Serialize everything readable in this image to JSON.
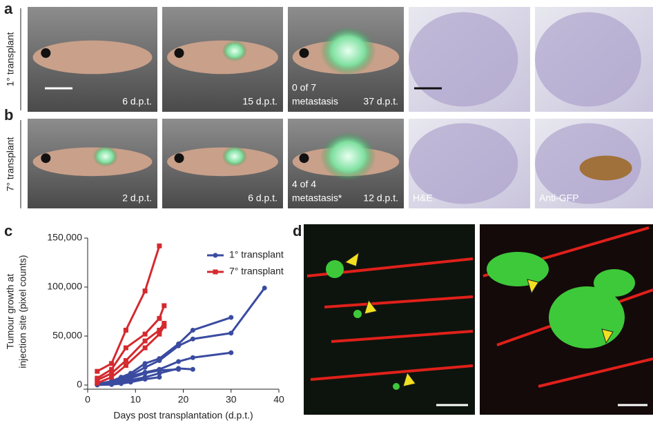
{
  "figure": {
    "panel_labels": [
      "a",
      "b",
      "c",
      "d"
    ],
    "rows": [
      {
        "label": "1° transplant",
        "captions": [
          "6 d.p.t.",
          "15 d.p.t.",
          "37 d.p.t."
        ],
        "note": [
          "0 of 7",
          "metastasis"
        ]
      },
      {
        "label": "7° transplant",
        "captions": [
          "2 d.p.t.",
          "6 d.p.t.",
          "12 d.p.t."
        ],
        "note": [
          "4 of 4",
          "metastasis*"
        ],
        "stains": [
          "H&E",
          "Anti-GFP"
        ]
      }
    ]
  },
  "chart_data": {
    "type": "line",
    "xlabel": "Days post transplantation (d.p.t.)",
    "ylabel": [
      "Tumour growth at",
      "injection site (pixel counts)"
    ],
    "xlim": [
      0,
      40
    ],
    "xticks": [
      0,
      10,
      20,
      30,
      40
    ],
    "ylim": [
      0,
      150000
    ],
    "yticks": [
      0,
      {
        "value": 50000,
        "label": "50,000"
      },
      {
        "value": 100000,
        "label": "100,000"
      },
      {
        "value": 150000,
        "label": "150,000"
      }
    ],
    "legend": "top-right",
    "series": [
      {
        "name": "1° transplant",
        "color": "#3a4ba0",
        "marker": "circle",
        "lines": [
          {
            "x": [
              2,
              5,
              7,
              9,
              12,
              15,
              19,
              22,
              30,
              37
            ],
            "values": [
              1000,
              3000,
              6000,
              10000,
              18000,
              25000,
              40000,
              47000,
              53000,
              99000
            ]
          },
          {
            "x": [
              2,
              5,
              7,
              9,
              12,
              15,
              19,
              22,
              30
            ],
            "values": [
              1000,
              4000,
              8000,
              12000,
              22000,
              27000,
              42000,
              56000,
              69000
            ]
          },
          {
            "x": [
              2,
              5,
              7,
              9,
              12,
              15,
              19,
              22,
              30
            ],
            "values": [
              500,
              2000,
              5000,
              9000,
              13000,
              16000,
              24000,
              28000,
              33000
            ]
          },
          {
            "x": [
              2,
              5,
              7,
              9,
              12,
              15,
              19
            ],
            "values": [
              500,
              2000,
              4000,
              7000,
              12000,
              15000,
              16000
            ]
          },
          {
            "x": [
              2,
              5,
              7,
              9,
              12,
              15,
              19,
              22
            ],
            "values": [
              200,
              1000,
              3000,
              5000,
              8000,
              12000,
              17000,
              16000
            ]
          },
          {
            "x": [
              2,
              5,
              7,
              9,
              12,
              15
            ],
            "values": [
              100,
              500,
              1500,
              3000,
              6000,
              8000
            ]
          }
        ]
      },
      {
        "name": "7° transplant",
        "color": "#d42a2f",
        "marker": "square",
        "lines": [
          {
            "x": [
              2,
              5,
              8,
              12,
              15
            ],
            "values": [
              14000,
              22000,
              56000,
              96000,
              142000
            ]
          },
          {
            "x": [
              2,
              5,
              8,
              12,
              15,
              16
            ],
            "values": [
              7000,
              16000,
              38000,
              52000,
              68000,
              81000
            ]
          },
          {
            "x": [
              2,
              5,
              8,
              12,
              15,
              16
            ],
            "values": [
              5000,
              12000,
              25000,
              45000,
              56000,
              63000
            ]
          },
          {
            "x": [
              2,
              5,
              8,
              12,
              15,
              16
            ],
            "values": [
              2000,
              8000,
              20000,
              38000,
              52000,
              60000
            ]
          }
        ]
      }
    ]
  }
}
